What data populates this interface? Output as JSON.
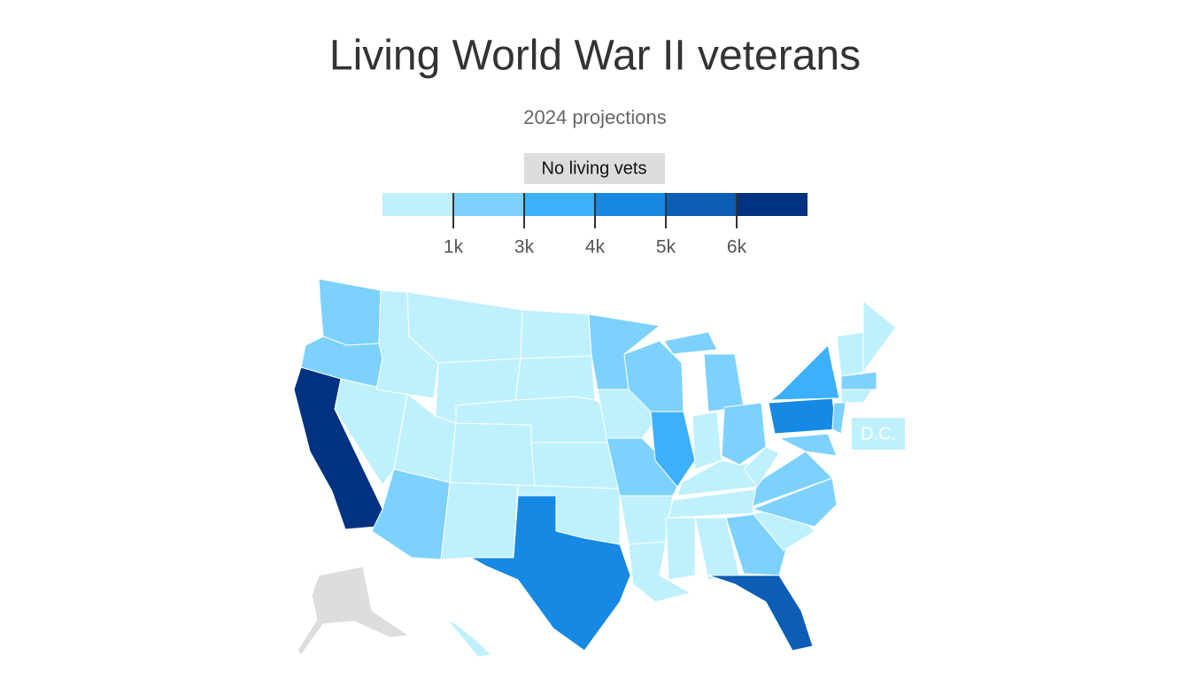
{
  "title": "Living World War II veterans",
  "subtitle": "2024 projections",
  "legend": {
    "no_data_label": "No living vets",
    "no_data_color": "#dddddd",
    "colors": [
      "#bff0fe",
      "#7dd1fe",
      "#3db0fd",
      "#1589e4",
      "#0c5db5",
      "#003282"
    ],
    "breaks": [
      {
        "value": 1000,
        "label": "1k"
      },
      {
        "value": 3000,
        "label": "3k"
      },
      {
        "value": 4000,
        "label": "4k"
      },
      {
        "value": 5000,
        "label": "5k"
      },
      {
        "value": 6000,
        "label": "6k"
      }
    ]
  },
  "annotations": {
    "dc": "D.C."
  }
}
